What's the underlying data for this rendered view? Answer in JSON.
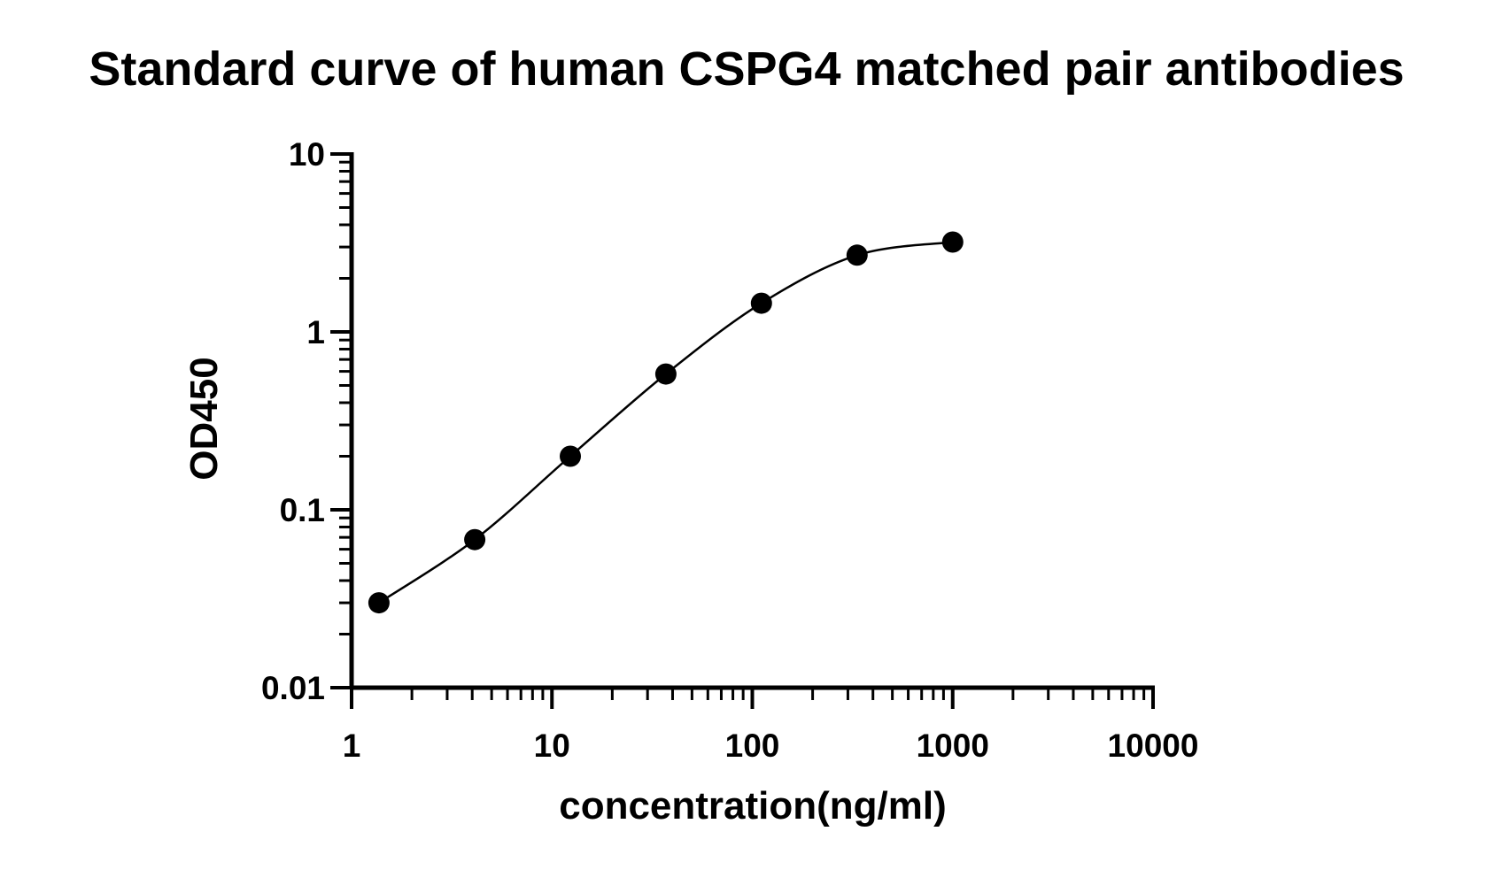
{
  "chart_data": {
    "type": "scatter",
    "title": "Standard curve of human CSPG4 matched pair antibodies",
    "xlabel": "concentration(ng/ml)",
    "ylabel": "OD450",
    "xscale": "log",
    "yscale": "log",
    "xlim": [
      1,
      10000
    ],
    "ylim": [
      0.01,
      10
    ],
    "x_ticks": [
      "1",
      "10",
      "100",
      "1000",
      "10000"
    ],
    "y_ticks": [
      "0.01",
      "0.1",
      "1",
      "10"
    ],
    "grid": false,
    "legend": "none",
    "fit_curve": true,
    "series": [
      {
        "x": [
          1.37,
          4.12,
          12.35,
          37.04,
          111.1,
          333.3,
          1000
        ],
        "y": [
          0.03,
          0.068,
          0.2,
          0.58,
          1.45,
          2.7,
          3.2
        ]
      }
    ]
  },
  "colors": {
    "marker": "#000000",
    "line": "#000000",
    "axis": "#000000"
  }
}
